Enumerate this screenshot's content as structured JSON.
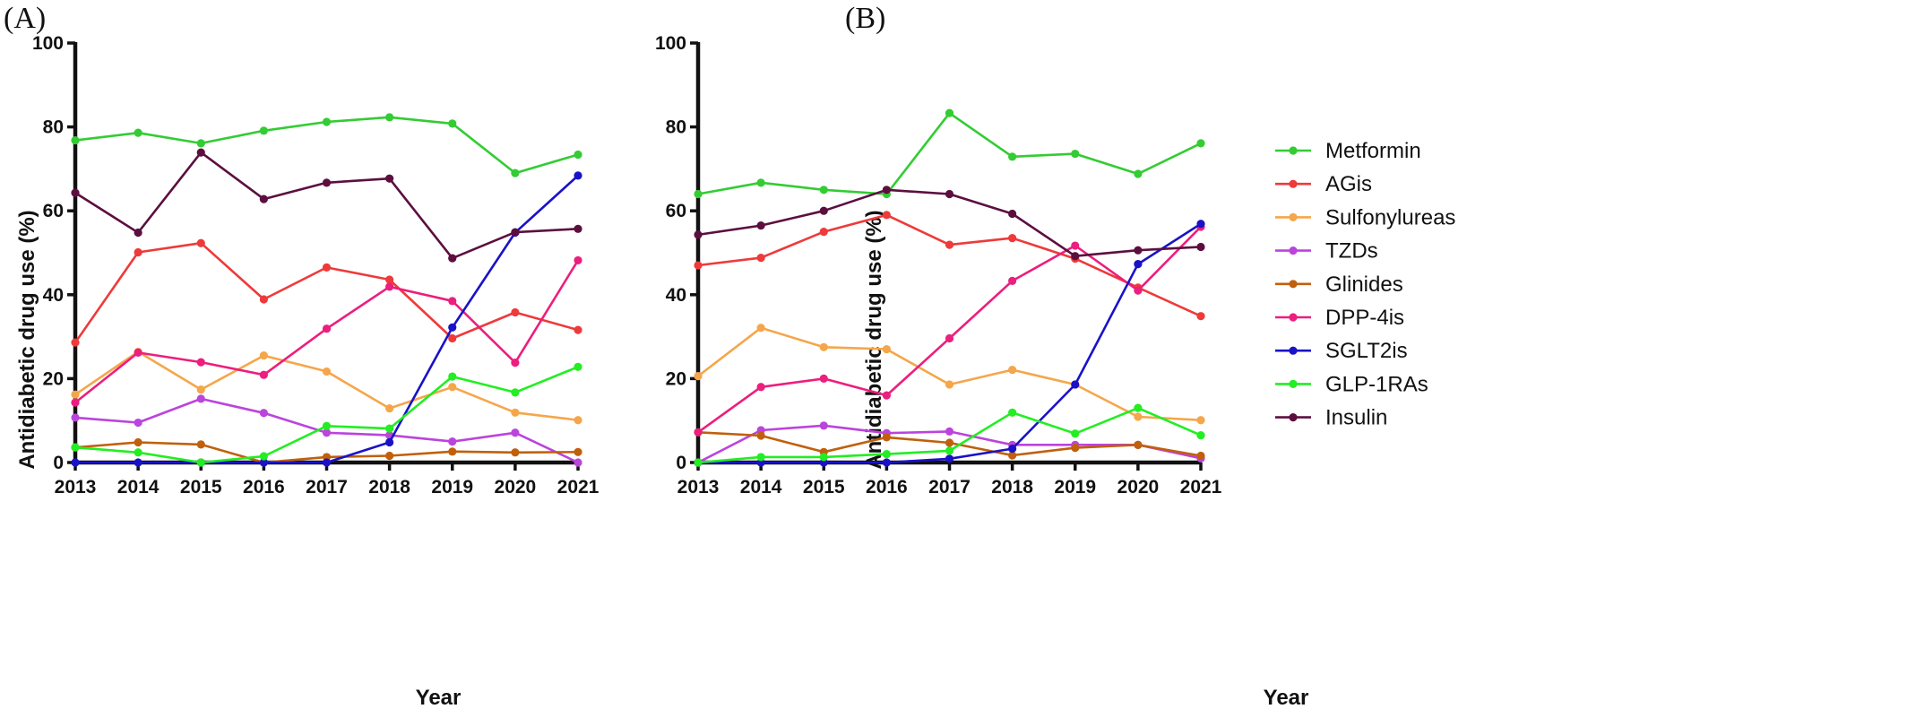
{
  "chart_data": [
    {
      "type": "line",
      "panel_label": "(A)",
      "xlabel": "Year",
      "ylabel": "Antidiabetic drug use (%)",
      "x": [
        "2013",
        "2014",
        "2015",
        "2016",
        "2017",
        "2018",
        "2019",
        "2020",
        "2021"
      ],
      "ylim": [
        0,
        100
      ],
      "yticks": [
        "0",
        "20",
        "40",
        "60",
        "80",
        "100"
      ],
      "grid": false,
      "series": [
        {
          "name": "Metformin",
          "color": "#33cc33",
          "values": [
            76.8,
            78.6,
            76.1,
            79.1,
            81.2,
            82.3,
            80.8,
            69.0,
            73.4
          ]
        },
        {
          "name": "AGis",
          "color": "#ee3a3a",
          "values": [
            28.6,
            50.1,
            52.3,
            38.9,
            46.5,
            43.6,
            29.6,
            35.8,
            31.6
          ]
        },
        {
          "name": "Sulfonylureas",
          "color": "#f5a64a",
          "values": [
            16.2,
            26.4,
            17.4,
            25.5,
            21.7,
            12.9,
            18.0,
            11.9,
            10.1
          ]
        },
        {
          "name": "TZDs",
          "color": "#bb44dd",
          "values": [
            10.7,
            9.5,
            15.2,
            11.8,
            7.1,
            6.5,
            5.0,
            7.1,
            0.0
          ]
        },
        {
          "name": "Glinides",
          "color": "#c0600c",
          "values": [
            3.6,
            4.8,
            4.3,
            0.0,
            1.3,
            1.6,
            2.6,
            2.4,
            2.5
          ]
        },
        {
          "name": "DPP-4is",
          "color": "#ec1e7e",
          "values": [
            14.3,
            26.2,
            23.9,
            20.9,
            31.9,
            41.9,
            38.5,
            23.8,
            48.2
          ]
        },
        {
          "name": "SGLT2is",
          "color": "#1a12c8",
          "values": [
            0.0,
            0.0,
            0.0,
            0.0,
            0.0,
            4.8,
            32.2,
            54.8,
            68.4
          ]
        },
        {
          "name": "GLP-1RAs",
          "color": "#22ee22",
          "values": [
            3.6,
            2.4,
            0.0,
            1.5,
            8.7,
            8.1,
            20.5,
            16.7,
            22.8
          ]
        },
        {
          "name": "Insulin",
          "color": "#5c0f3f",
          "values": [
            64.3,
            54.8,
            73.9,
            62.8,
            66.7,
            67.7,
            48.7,
            54.9,
            55.7
          ]
        }
      ]
    },
    {
      "type": "line",
      "panel_label": "(B)",
      "xlabel": "Year",
      "ylabel": "Antidiabetic drug use (%)",
      "x": [
        "2013",
        "2014",
        "2015",
        "2016",
        "2017",
        "2018",
        "2019",
        "2020",
        "2021"
      ],
      "ylim": [
        0,
        100
      ],
      "yticks": [
        "0",
        "20",
        "40",
        "60",
        "80",
        "100"
      ],
      "grid": false,
      "series": [
        {
          "name": "Metformin",
          "color": "#33cc33",
          "values": [
            64.0,
            66.7,
            65.0,
            64.0,
            83.3,
            72.9,
            73.6,
            68.8,
            76.1
          ]
        },
        {
          "name": "AGis",
          "color": "#ee3a3a",
          "values": [
            47.0,
            48.8,
            55.0,
            59.0,
            51.9,
            53.5,
            48.6,
            41.7,
            34.9
          ]
        },
        {
          "name": "Sulfonylureas",
          "color": "#f5a64a",
          "values": [
            20.6,
            32.1,
            27.5,
            27.0,
            18.6,
            22.1,
            18.6,
            10.9,
            10.1
          ]
        },
        {
          "name": "TZDs",
          "color": "#bb44dd",
          "values": [
            0.0,
            7.7,
            8.8,
            7.0,
            7.4,
            4.2,
            4.2,
            4.2,
            1.0
          ]
        },
        {
          "name": "Glinides",
          "color": "#c0600c",
          "values": [
            7.2,
            6.4,
            2.5,
            6.0,
            4.7,
            1.7,
            3.5,
            4.2,
            1.6
          ]
        },
        {
          "name": "DPP-4is",
          "color": "#ec1e7e",
          "values": [
            7.2,
            18.0,
            20.0,
            16.0,
            29.6,
            43.3,
            51.7,
            41.0,
            56.2
          ]
        },
        {
          "name": "SGLT2is",
          "color": "#1a12c8",
          "values": [
            0.0,
            0.0,
            0.0,
            0.0,
            0.9,
            3.3,
            18.6,
            47.3,
            56.9
          ]
        },
        {
          "name": "GLP-1RAs",
          "color": "#22ee22",
          "values": [
            0.0,
            1.3,
            1.3,
            2.0,
            2.8,
            11.9,
            6.9,
            13.0,
            6.5
          ]
        },
        {
          "name": "Insulin",
          "color": "#5c0f3f",
          "values": [
            54.3,
            56.5,
            60.0,
            65.0,
            64.0,
            59.3,
            49.2,
            50.6,
            51.4
          ]
        }
      ]
    }
  ]
}
